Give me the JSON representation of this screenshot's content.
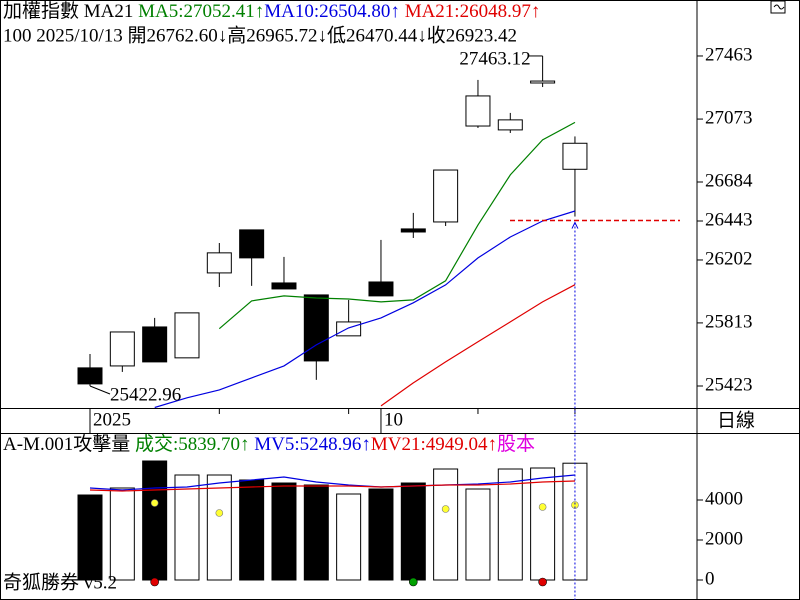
{
  "chart_data": [
    {
      "type": "candlestick",
      "title": "加權指數 MA21",
      "info": "100 2025/10/13 開26762.60↓高26965.72↓低26470.44↓收26923.42",
      "categories": [
        "2025",
        null,
        null,
        null,
        null,
        null,
        null,
        null,
        null,
        "10",
        null,
        null,
        null,
        null,
        null,
        null
      ],
      "open": [
        25535,
        25547,
        25788,
        25597,
        26122,
        26388,
        26060,
        25986,
        25733,
        26066,
        26394,
        26437,
        27030,
        27006,
        27296,
        26762.6
      ],
      "high": [
        25621,
        25757,
        25844,
        25875,
        26307,
        26388,
        26221,
        25986,
        25955,
        26326,
        26493,
        26758,
        27315,
        27111,
        27463.12,
        26965.72
      ],
      "low": [
        25422.96,
        25510,
        25572,
        25597,
        26035,
        26042,
        26023,
        25461,
        25733,
        25980,
        26338,
        26412,
        27018,
        26987,
        27271,
        26470.44
      ],
      "close": [
        25436,
        25757,
        25572,
        25875,
        26246,
        26215,
        26023,
        25578,
        25819,
        25980,
        26375,
        26758,
        27216,
        27068,
        27308,
        26923.42
      ],
      "high_label": "27463.12",
      "low_label": "25422.96",
      "series": [
        {
          "name": "MA5:27052.41↑",
          "color": "#008000",
          "values": [
            null,
            null,
            null,
            null,
            25777,
            25949,
            25980,
            25967,
            25961,
            25943,
            25955,
            26073,
            26419,
            26728,
            26944,
            27052.41
          ]
        },
        {
          "name": "MA10:26504.80↑",
          "color": "#0000e0",
          "values": [
            null,
            null,
            25290,
            25350,
            25399,
            25473,
            25547,
            25677,
            25782,
            25844,
            25937,
            26048,
            26215,
            26344,
            26443,
            26504.8
          ]
        },
        {
          "name": "MA21:26048.97↑",
          "color": "#e00000",
          "values": [
            null,
            null,
            null,
            null,
            null,
            null,
            null,
            null,
            null,
            25300,
            25442,
            25572,
            25696,
            25819,
            25943,
            26048.97
          ]
        }
      ],
      "ylim": [
        25287,
        27809
      ],
      "yticks": [
        27463,
        27073,
        26684,
        26443,
        26202,
        25813,
        25423
      ],
      "period_label": "日線"
    },
    {
      "type": "volume",
      "title": "A-M.001攻擊量",
      "volume_label": "成交:5839.70↑",
      "values": [
        4250,
        4600,
        5950,
        5250,
        5250,
        5000,
        4850,
        4750,
        4300,
        4550,
        4850,
        5550,
        4550,
        5550,
        5600,
        5839.7
      ],
      "series": [
        {
          "name": "MV5:5248.96↑",
          "color": "#0000e0",
          "values": [
            4600,
            4500,
            4600,
            4650,
            4850,
            5000,
            5150,
            4900,
            4750,
            4650,
            4700,
            4750,
            4800,
            4900,
            5100,
            5248.96
          ]
        },
        {
          "name": "MV21:4949.04↑",
          "color": "#e00000",
          "values": [
            4500,
            4450,
            4500,
            4550,
            4600,
            4650,
            4700,
            4700,
            4700,
            4650,
            4700,
            4750,
            4750,
            4800,
            4900,
            4949.04
          ]
        }
      ],
      "extra_label": "股本",
      "dots": [
        null,
        null,
        3850,
        null,
        3350,
        null,
        null,
        null,
        null,
        null,
        null,
        3550,
        null,
        null,
        3650,
        3750
      ],
      "dot_color": "#ffff33",
      "signals": [
        {
          "index": 2,
          "color": "#e00000"
        },
        {
          "index": 10,
          "color": "#00a000"
        },
        {
          "index": 14,
          "color": "#e00000"
        }
      ],
      "ylim": [
        -1000,
        7350
      ],
      "yticks": [
        4000,
        2000,
        0
      ]
    }
  ],
  "footer": "奇狐勝券 v5.2"
}
